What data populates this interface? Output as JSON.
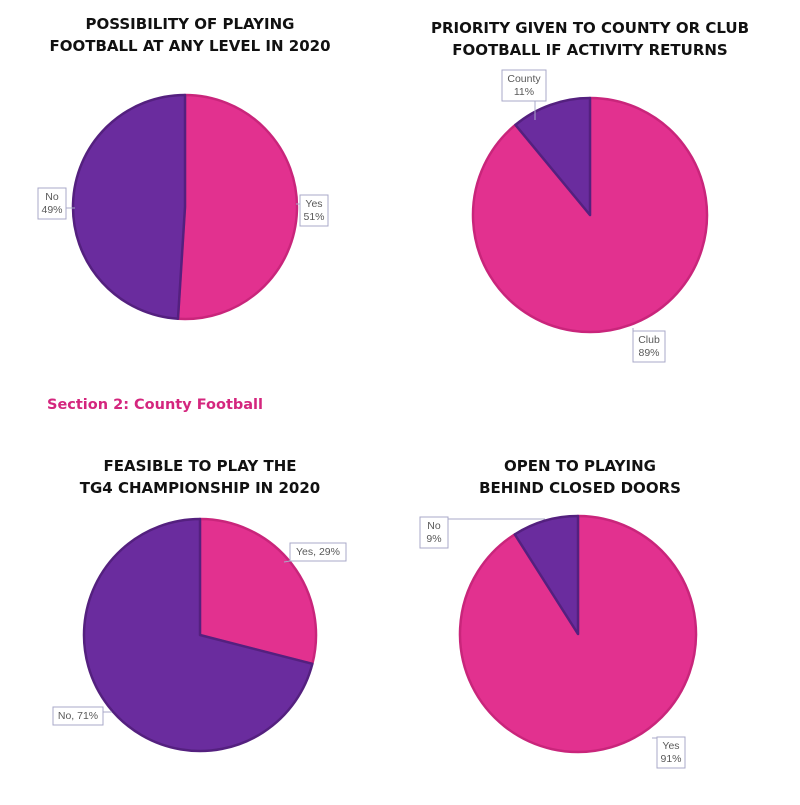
{
  "section_heading": "Section 2: County Football",
  "colors": {
    "pink": "#e2318f",
    "pink_edge": "#c9257b",
    "purple": "#6a2c9e",
    "purple_edge": "#54207f",
    "label_box_border": "#a9a9c8",
    "label_text": "#595959"
  },
  "chart_data": [
    {
      "type": "pie",
      "title_lines": [
        "POSSIBILITY OF PLAYING",
        "FOOTBALL AT ANY LEVEL IN 2020"
      ],
      "slices": [
        {
          "category": "Yes",
          "value": 51,
          "percent_label": "51%",
          "color": "pink"
        },
        {
          "category": "No",
          "value": 49,
          "percent_label": "49%",
          "color": "purple"
        }
      ]
    },
    {
      "type": "pie",
      "title_lines": [
        "PRIORITY GIVEN TO COUNTY OR CLUB",
        "FOOTBALL IF ACTIVITY RETURNS"
      ],
      "slices": [
        {
          "category": "Club",
          "value": 89,
          "percent_label": "89%",
          "color": "pink"
        },
        {
          "category": "County",
          "value": 11,
          "percent_label": "11%",
          "color": "purple"
        }
      ]
    },
    {
      "type": "pie",
      "title_lines": [
        "FEASIBLE TO PLAY THE",
        "TG4 CHAMPIONSHIP IN 2020"
      ],
      "slices": [
        {
          "category": "Yes",
          "value": 29,
          "percent_label": "Yes, 29%",
          "color": "pink"
        },
        {
          "category": "No",
          "value": 71,
          "percent_label": "No, 71%",
          "color": "purple"
        }
      ]
    },
    {
      "type": "pie",
      "title_lines": [
        "OPEN TO PLAYING",
        "BEHIND CLOSED DOORS"
      ],
      "slices": [
        {
          "category": "Yes",
          "value": 91,
          "percent_label": "91%",
          "color": "pink"
        },
        {
          "category": "No",
          "value": 9,
          "percent_label": "9%",
          "color": "purple"
        }
      ]
    }
  ]
}
